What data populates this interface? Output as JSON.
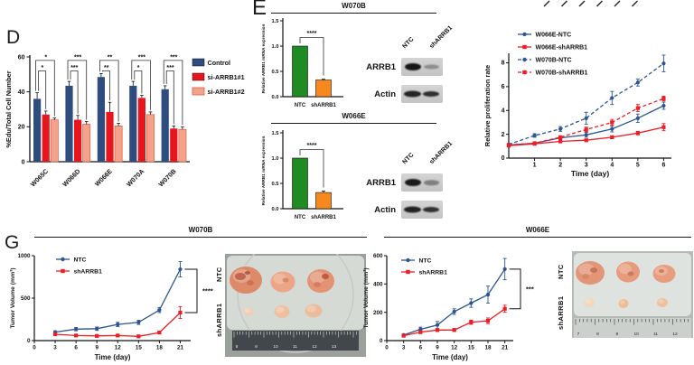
{
  "panel_labels": {
    "d": "D",
    "e": "E",
    "g": "G"
  },
  "panel_e": {
    "sections": [
      {
        "title": "W070B",
        "blot": {
          "lanes": [
            "NTC",
            "shARRB1"
          ],
          "rows": [
            "ARRB1",
            "Actin"
          ]
        }
      },
      {
        "title": "W066E",
        "blot": {
          "lanes": [
            "NTC",
            "shARRB1"
          ],
          "rows": [
            "ARRB1",
            "Actin"
          ]
        }
      }
    ]
  },
  "panel_g": {
    "sections": [
      {
        "title": "W070B",
        "photo": {
          "row_labels": [
            "NTC",
            "shARRB1"
          ],
          "ruler_numbers": [
            "8",
            "9",
            "10",
            "11",
            "12",
            "13"
          ]
        }
      },
      {
        "title": "W066E",
        "photo": {
          "row_labels": [
            "NTC",
            "shARRB1"
          ],
          "ruler_numbers": [
            "7",
            "8",
            "9",
            "10",
            "11",
            "12"
          ]
        }
      }
    ]
  },
  "chart_data": [
    {
      "id": "d_edu",
      "type": "bar",
      "ylabel": "%Edu/Total Cell Number",
      "ylim": [
        0,
        60
      ],
      "yticks": [
        0,
        20,
        40,
        60
      ],
      "categories": [
        "W065C",
        "W066D",
        "W066E",
        "W070A",
        "W070B"
      ],
      "series": [
        {
          "name": "Control",
          "color": "#2e4d7e",
          "values": [
            36,
            43.5,
            48.5,
            43.5,
            41.5
          ],
          "errors": [
            3.5,
            2.5,
            2,
            2.5,
            2
          ]
        },
        {
          "name": "si-ARRB1#1",
          "color": "#e8151d",
          "values": [
            27,
            24,
            28.5,
            36.5,
            19
          ],
          "errors": [
            2,
            2.5,
            5.5,
            1.5,
            1.5
          ]
        },
        {
          "name": "si-ARRB1#2",
          "color": "#f5a388",
          "border": "#d35f4d",
          "values": [
            24,
            21.5,
            20.5,
            27,
            18.5
          ],
          "errors": [
            1,
            1.5,
            1.5,
            1.5,
            1.5
          ]
        }
      ],
      "significance": [
        {
          "inner": "*",
          "outer": "*"
        },
        {
          "inner": "***",
          "outer": "***"
        },
        {
          "inner": "**",
          "outer": "**"
        },
        {
          "inner": "*",
          "outer": "***"
        },
        {
          "inner": "***",
          "outer": "***"
        }
      ]
    },
    {
      "id": "e_w070b_mrna",
      "type": "bar",
      "title": "W070B",
      "ylabel": "Relative ARRB1 mRNA expression",
      "ylim": [
        0,
        1.5
      ],
      "ytick_labels": [
        "0.0",
        "0.5",
        "1.0",
        "1.5"
      ],
      "categories": [
        "NTC",
        "shARRB1"
      ],
      "values": [
        1.0,
        0.33
      ],
      "errors": [
        0,
        0.015
      ],
      "bar_colors": [
        "#208b22",
        "#f6881f"
      ],
      "significance": "****"
    },
    {
      "id": "e_w066e_mrna",
      "type": "bar",
      "title": "W066E",
      "ylabel": "Relative ARRB1 mRNA expression",
      "ylim": [
        0,
        1.5
      ],
      "ytick_labels": [
        "0.0",
        "0.5",
        "1.0",
        "1.5"
      ],
      "categories": [
        "NTC",
        "shARRB1"
      ],
      "values": [
        1.0,
        0.32
      ],
      "errors": [
        0,
        0.03
      ],
      "bar_colors": [
        "#208b22",
        "#f6881f"
      ],
      "significance": "****"
    },
    {
      "id": "proliferation",
      "type": "line",
      "xlabel": "Time (day)",
      "ylabel": "Relative proliferation rate",
      "x": [
        0,
        1,
        2,
        3,
        4,
        5,
        6
      ],
      "xticks": [
        1,
        2,
        3,
        4,
        5,
        6
      ],
      "xlim": [
        0,
        6.3
      ],
      "ylim": [
        0,
        8.8
      ],
      "yticks": [
        0,
        2,
        4,
        6,
        8
      ],
      "series": [
        {
          "name": "W066E-NTC",
          "color": "#2b5592",
          "marker": "circle",
          "dash": false,
          "values": [
            1.1,
            1.25,
            1.7,
            1.95,
            2.45,
            3.35,
            4.4
          ],
          "errors": [
            0.08,
            0.1,
            0.15,
            0.2,
            0.25,
            0.35,
            0.3
          ]
        },
        {
          "name": "W066E-shARRB1",
          "color": "#ee1c25",
          "marker": "square",
          "dash": false,
          "values": [
            1.05,
            1.2,
            1.4,
            1.5,
            1.75,
            2.1,
            2.6
          ],
          "errors": [
            0.05,
            0.08,
            0.1,
            0.1,
            0.12,
            0.15,
            0.3
          ]
        },
        {
          "name": "W070B-NTC",
          "color": "#2b5592",
          "marker": "circle",
          "dash": true,
          "values": [
            1.15,
            1.9,
            2.45,
            3.35,
            5.05,
            6.35,
            7.95
          ],
          "errors": [
            0.08,
            0.15,
            0.2,
            0.5,
            0.55,
            0.3,
            0.7
          ]
        },
        {
          "name": "W070B-shARRB1",
          "color": "#ee1c25",
          "marker": "square",
          "dash": true,
          "values": [
            1.1,
            1.25,
            1.75,
            2.4,
            3.0,
            4.2,
            5.0
          ],
          "errors": [
            0.05,
            0.1,
            0.12,
            0.2,
            0.25,
            0.3,
            0.2
          ]
        }
      ]
    },
    {
      "id": "g_w070b_tumor",
      "type": "line",
      "title": "W070B",
      "xlabel": "Time (day)",
      "ylabel": "Tumor Volume (mm³)",
      "x": [
        3,
        6,
        9,
        12,
        15,
        18,
        21
      ],
      "xticks": [
        0,
        3,
        6,
        9,
        12,
        15,
        18,
        21
      ],
      "xlim": [
        0,
        22.5
      ],
      "ylim": [
        0,
        1000
      ],
      "yticks": [
        0,
        500,
        1000
      ],
      "series": [
        {
          "name": "NTC",
          "color": "#2b5592",
          "marker": "circle",
          "dash": false,
          "values": [
            100,
            135,
            140,
            190,
            215,
            360,
            840
          ],
          "errors": [
            15,
            20,
            20,
            25,
            25,
            30,
            90
          ]
        },
        {
          "name": "shARRB1",
          "color": "#ee1c25",
          "marker": "square",
          "dash": false,
          "values": [
            75,
            60,
            55,
            60,
            50,
            95,
            330
          ],
          "errors": [
            10,
            10,
            10,
            10,
            10,
            15,
            70
          ]
        }
      ],
      "significance": "****"
    },
    {
      "id": "g_w066e_tumor",
      "type": "line",
      "title": "W066E",
      "xlabel": "Time (day)",
      "ylabel": "Tumor Volume (mm³)",
      "x": [
        3,
        6,
        9,
        12,
        15,
        18,
        21
      ],
      "xticks": [
        0,
        3,
        6,
        9,
        12,
        15,
        18,
        21
      ],
      "xlim": [
        0,
        22.5
      ],
      "ylim": [
        0,
        600
      ],
      "yticks": [
        0,
        200,
        400,
        600
      ],
      "series": [
        {
          "name": "NTC",
          "color": "#2b5592",
          "marker": "circle",
          "dash": false,
          "values": [
            40,
            80,
            110,
            205,
            265,
            325,
            505
          ],
          "errors": [
            5,
            15,
            25,
            20,
            30,
            60,
            75
          ]
        },
        {
          "name": "shARRB1",
          "color": "#ee1c25",
          "marker": "square",
          "dash": false,
          "values": [
            35,
            60,
            75,
            75,
            130,
            140,
            225
          ],
          "errors": [
            5,
            10,
            10,
            10,
            15,
            20,
            25
          ]
        }
      ],
      "significance": "***"
    }
  ]
}
